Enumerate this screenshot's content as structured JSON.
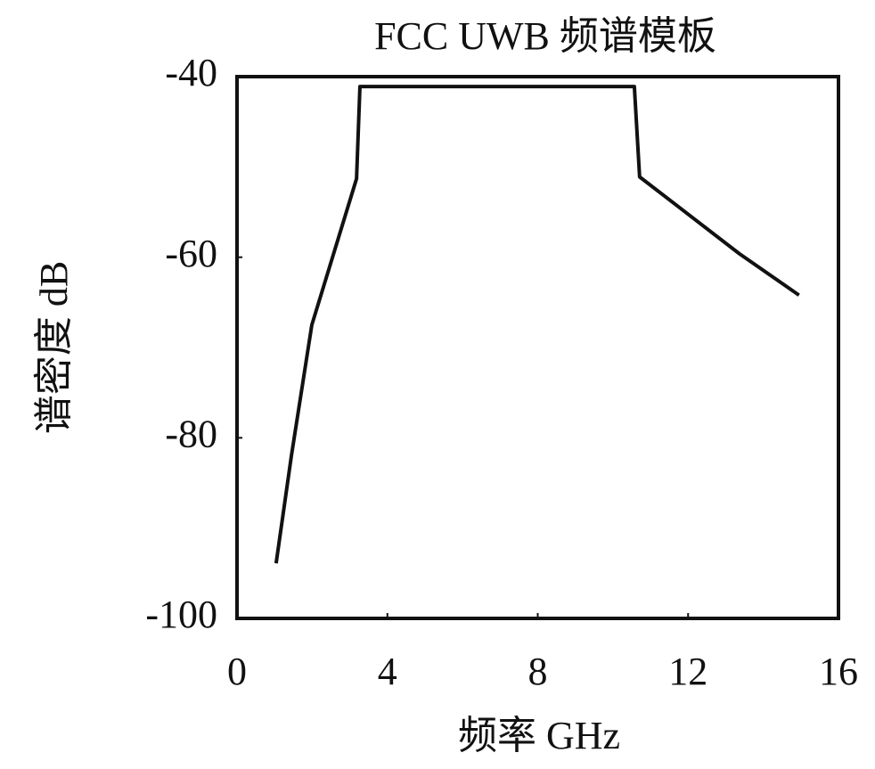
{
  "chart_data": {
    "type": "line",
    "title": "FCC UWB 频谱模板",
    "x_label": "频率 GHz",
    "y_label": "谱密度 dB",
    "x": [
      1.04,
      1.45,
      1.99,
      3.18,
      3.27,
      10.57,
      10.71,
      13.36,
      14.95
    ],
    "series": [
      {
        "name": "FCC UWB",
        "color": "#111111",
        "values": [
          -93.9,
          -81.9,
          -67.5,
          -51.3,
          -41.1,
          -41.1,
          -51.1,
          -59.6,
          -64.2
        ]
      }
    ],
    "xlim": [
      0,
      16
    ],
    "xticks": [
      0,
      4,
      8,
      12,
      16
    ],
    "ylim": [
      -100,
      -40
    ],
    "yticks": [
      -40,
      -60,
      -80,
      -100
    ],
    "grid": false
  }
}
